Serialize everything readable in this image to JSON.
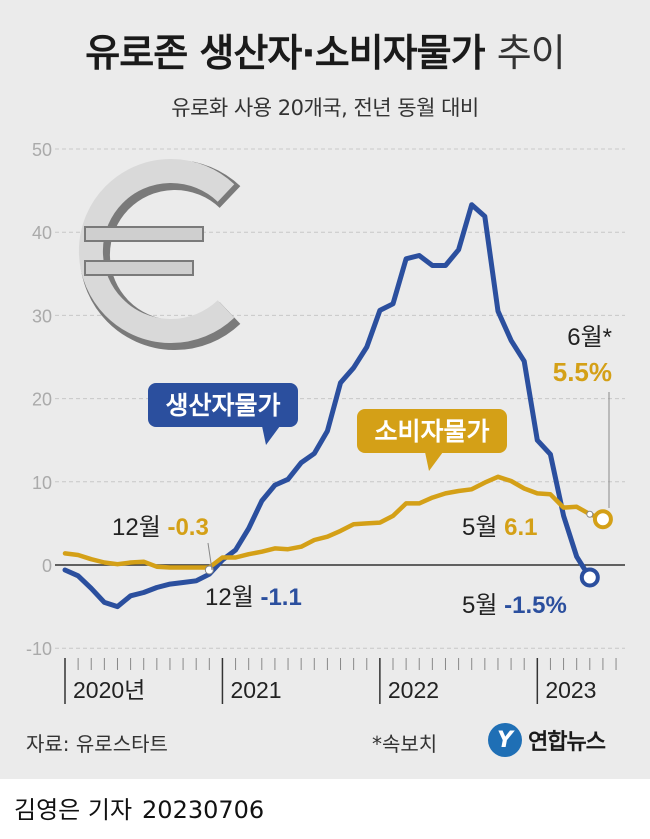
{
  "title_bold": "유로존 생산자·소비자물가",
  "title_light": "추이",
  "subtitle": "유로화 사용 20개국, 전년 동월 대비",
  "source": "자료: 유로스타트",
  "note": "*속보치",
  "logo": "연합뉴스",
  "logo_mark": "Y",
  "reporter": "김영은 기자",
  "date": "20230706",
  "icon": "euro-sign-icon",
  "colors": {
    "producer": "#2b4f9e",
    "consumer": "#d4a017",
    "panel": "#ebebeb"
  },
  "chart_data": {
    "type": "line",
    "x_start": "2020-01",
    "x_ticks": [
      "2020년",
      "2021",
      "2022",
      "2023"
    ],
    "ylim": [
      -10,
      50
    ],
    "yticks": [
      "50",
      "40",
      "30",
      "20",
      "10",
      "0",
      "-10"
    ],
    "series": [
      {
        "name": "생산자물가",
        "color": "#2b4f9e",
        "x": [
          "2020-01",
          "2020-02",
          "2020-03",
          "2020-04",
          "2020-05",
          "2020-06",
          "2020-07",
          "2020-08",
          "2020-09",
          "2020-10",
          "2020-11",
          "2020-12",
          "2021-01",
          "2021-02",
          "2021-03",
          "2021-04",
          "2021-05",
          "2021-06",
          "2021-07",
          "2021-08",
          "2021-09",
          "2021-10",
          "2021-11",
          "2021-12",
          "2022-01",
          "2022-02",
          "2022-03",
          "2022-04",
          "2022-05",
          "2022-06",
          "2022-07",
          "2022-08",
          "2022-09",
          "2022-10",
          "2022-11",
          "2022-12",
          "2023-01",
          "2023-02",
          "2023-03",
          "2023-04",
          "2023-05"
        ],
        "values": [
          -0.6,
          -1.3,
          -2.8,
          -4.5,
          -5.0,
          -3.7,
          -3.3,
          -2.7,
          -2.3,
          -2.1,
          -1.9,
          -1.1,
          0.6,
          1.8,
          4.4,
          7.7,
          9.6,
          10.3,
          12.3,
          13.4,
          16.1,
          21.9,
          23.7,
          26.2,
          30.6,
          31.4,
          36.8,
          37.2,
          36.0,
          36.0,
          37.9,
          43.3,
          41.9,
          30.5,
          27.0,
          24.5,
          15.0,
          13.3,
          5.9,
          1.0,
          -1.5
        ]
      },
      {
        "name": "소비자물가",
        "color": "#d4a017",
        "x": [
          "2020-01",
          "2020-02",
          "2020-03",
          "2020-04",
          "2020-05",
          "2020-06",
          "2020-07",
          "2020-08",
          "2020-09",
          "2020-10",
          "2020-11",
          "2020-12",
          "2021-01",
          "2021-02",
          "2021-03",
          "2021-04",
          "2021-05",
          "2021-06",
          "2021-07",
          "2021-08",
          "2021-09",
          "2021-10",
          "2021-11",
          "2021-12",
          "2022-01",
          "2022-02",
          "2022-03",
          "2022-04",
          "2022-05",
          "2022-06",
          "2022-07",
          "2022-08",
          "2022-09",
          "2022-10",
          "2022-11",
          "2022-12",
          "2023-01",
          "2023-02",
          "2023-03",
          "2023-04",
          "2023-05",
          "2023-06"
        ],
        "values": [
          1.4,
          1.2,
          0.7,
          0.3,
          0.1,
          0.3,
          0.4,
          -0.2,
          -0.3,
          -0.3,
          -0.3,
          -0.3,
          0.9,
          0.9,
          1.3,
          1.6,
          2.0,
          1.9,
          2.2,
          3.0,
          3.4,
          4.1,
          4.9,
          5.0,
          5.1,
          5.9,
          7.4,
          7.4,
          8.1,
          8.6,
          8.9,
          9.1,
          9.9,
          10.6,
          10.1,
          9.2,
          8.6,
          8.5,
          6.9,
          7.0,
          6.1,
          5.5
        ]
      }
    ],
    "labels": {
      "producer_tag": "생산자물가",
      "consumer_tag": "소비자물가",
      "dec_month": "12월",
      "dec_consumer": "-0.3",
      "dec_producer": "-1.1",
      "may_month": "5월",
      "may_consumer": "6.1",
      "may_producer": "-1.5%",
      "jun_month": "6월*",
      "jun_consumer": "5.5%"
    }
  }
}
